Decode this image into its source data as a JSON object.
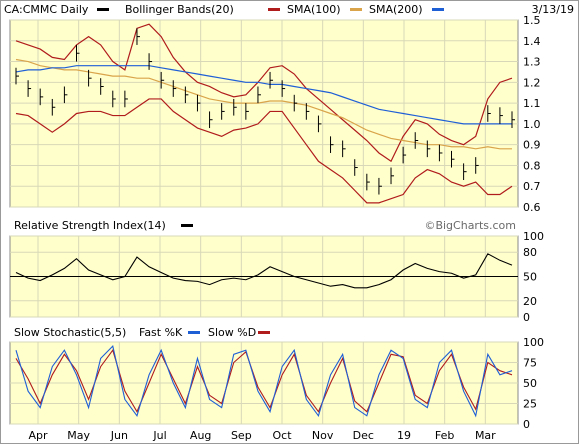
{
  "header": {
    "symbol_label": "CA:CMMC Daily",
    "bb_label": "Bollinger Bands(20)",
    "sma100_label": "SMA(100)",
    "sma200_label": "SMA(200)",
    "date": "3/13/19"
  },
  "watermark": "©BigCharts.com",
  "colors": {
    "background": "#ffffcc",
    "price_bars": "#000000",
    "bollinger": "#b01c1c",
    "sma100": "#d9a44a",
    "sma200": "#1f5fd6",
    "fast_k": "#1f5fd6",
    "slow_d": "#b01c1c"
  },
  "chart_data": [
    {
      "type": "ohlc",
      "title": "CA:CMMC Daily",
      "x_tick_labels": [
        "Apr",
        "May",
        "Jun",
        "Jul",
        "Aug",
        "Sep",
        "Oct",
        "Nov",
        "Dec",
        "19",
        "Feb",
        "Mar"
      ],
      "y_tick_labels": [
        "1.5",
        "1.4",
        "1.3",
        "1.2",
        "1.1",
        "1.0",
        "0.9",
        "0.8",
        "0.7",
        "0.6"
      ],
      "ylim": [
        0.6,
        1.5
      ],
      "grid": true,
      "legend": "top",
      "price_close": [
        1.23,
        1.17,
        1.13,
        1.08,
        1.14,
        1.34,
        1.22,
        1.18,
        1.12,
        1.12,
        1.42,
        1.3,
        1.21,
        1.17,
        1.14,
        1.1,
        1.02,
        1.06,
        1.08,
        1.06,
        1.14,
        1.21,
        1.17,
        1.1,
        1.06,
        1.0,
        0.9,
        0.88,
        0.79,
        0.72,
        0.7,
        0.75,
        0.85,
        0.92,
        0.88,
        0.86,
        0.83,
        0.77,
        0.8,
        1.05,
        1.04,
        1.02
      ],
      "series": [
        {
          "name": "Bollinger Bands(20)",
          "upper": [
            1.4,
            1.38,
            1.36,
            1.32,
            1.31,
            1.38,
            1.42,
            1.38,
            1.3,
            1.26,
            1.46,
            1.48,
            1.42,
            1.32,
            1.25,
            1.2,
            1.18,
            1.15,
            1.13,
            1.14,
            1.2,
            1.27,
            1.28,
            1.24,
            1.17,
            1.12,
            1.07,
            1.02,
            0.97,
            0.92,
            0.86,
            0.82,
            0.94,
            1.02,
            1.0,
            0.95,
            0.92,
            0.9,
            0.94,
            1.12,
            1.2,
            1.22
          ],
          "lower": [
            1.05,
            1.04,
            1.0,
            0.96,
            1.0,
            1.05,
            1.06,
            1.06,
            1.04,
            1.04,
            1.08,
            1.12,
            1.12,
            1.06,
            1.02,
            0.98,
            0.96,
            0.94,
            0.97,
            0.98,
            1.0,
            1.06,
            1.06,
            0.98,
            0.9,
            0.82,
            0.78,
            0.74,
            0.68,
            0.62,
            0.62,
            0.64,
            0.66,
            0.74,
            0.78,
            0.76,
            0.72,
            0.7,
            0.72,
            0.66,
            0.66,
            0.7
          ]
        },
        {
          "name": "SMA(100)",
          "values": [
            1.31,
            1.3,
            1.28,
            1.27,
            1.26,
            1.26,
            1.25,
            1.24,
            1.23,
            1.23,
            1.22,
            1.22,
            1.2,
            1.18,
            1.16,
            1.14,
            1.12,
            1.11,
            1.1,
            1.1,
            1.1,
            1.11,
            1.11,
            1.1,
            1.09,
            1.07,
            1.05,
            1.03,
            1.0,
            0.97,
            0.95,
            0.93,
            0.92,
            0.91,
            0.9,
            0.9,
            0.89,
            0.89,
            0.88,
            0.89,
            0.88,
            0.88
          ]
        },
        {
          "name": "SMA(200)",
          "values": [
            1.25,
            1.26,
            1.26,
            1.27,
            1.27,
            1.28,
            1.28,
            1.28,
            1.28,
            1.28,
            1.28,
            1.28,
            1.27,
            1.26,
            1.25,
            1.24,
            1.23,
            1.22,
            1.21,
            1.2,
            1.2,
            1.19,
            1.19,
            1.18,
            1.17,
            1.16,
            1.15,
            1.13,
            1.11,
            1.09,
            1.07,
            1.06,
            1.05,
            1.04,
            1.03,
            1.02,
            1.01,
            1.0,
            1.0,
            1.0,
            1.0,
            1.0
          ]
        }
      ]
    },
    {
      "type": "line",
      "title": "Relative Strength Index(14)",
      "y_tick_labels": [
        "100",
        "80",
        "50",
        "20",
        "0"
      ],
      "ylim": [
        0,
        100
      ],
      "reference_line": 50,
      "series": [
        {
          "name": "Relative Strength Index(14)",
          "values": [
            55,
            48,
            45,
            52,
            60,
            72,
            58,
            52,
            46,
            50,
            74,
            62,
            55,
            48,
            45,
            44,
            40,
            46,
            48,
            46,
            52,
            62,
            56,
            50,
            46,
            42,
            38,
            40,
            36,
            36,
            40,
            46,
            58,
            66,
            60,
            56,
            54,
            48,
            52,
            78,
            70,
            64
          ]
        }
      ]
    },
    {
      "type": "line",
      "title": "Slow Stochastic(5,5)",
      "y_tick_labels": [
        "100",
        "75",
        "50",
        "25",
        "0"
      ],
      "ylim": [
        0,
        100
      ],
      "series": [
        {
          "name": "Fast %K",
          "values": [
            90,
            40,
            20,
            70,
            90,
            60,
            20,
            80,
            95,
            30,
            10,
            60,
            90,
            50,
            20,
            80,
            30,
            20,
            85,
            90,
            40,
            15,
            70,
            90,
            30,
            10,
            60,
            85,
            20,
            10,
            60,
            90,
            80,
            30,
            20,
            75,
            90,
            40,
            10,
            85,
            60,
            65
          ]
        },
        {
          "name": "Slow %D",
          "values": [
            80,
            55,
            25,
            60,
            85,
            65,
            30,
            70,
            90,
            40,
            15,
            50,
            85,
            55,
            25,
            70,
            35,
            25,
            75,
            88,
            45,
            20,
            60,
            85,
            35,
            15,
            50,
            80,
            28,
            15,
            50,
            85,
            82,
            35,
            25,
            65,
            85,
            45,
            18,
            75,
            65,
            60
          ]
        }
      ]
    }
  ],
  "panels": {
    "price": {
      "title": "CA:CMMC Daily"
    },
    "rsi": {
      "title": "Relative Strength Index(14)",
      "y_ticks": [
        "100",
        "80",
        "50",
        "20",
        "0"
      ]
    },
    "stoch": {
      "title": "Slow Stochastic(5,5)",
      "fast_label": "Fast %K",
      "slow_label": "Slow %D",
      "y_ticks": [
        "100",
        "75",
        "50",
        "25",
        "0"
      ]
    }
  }
}
